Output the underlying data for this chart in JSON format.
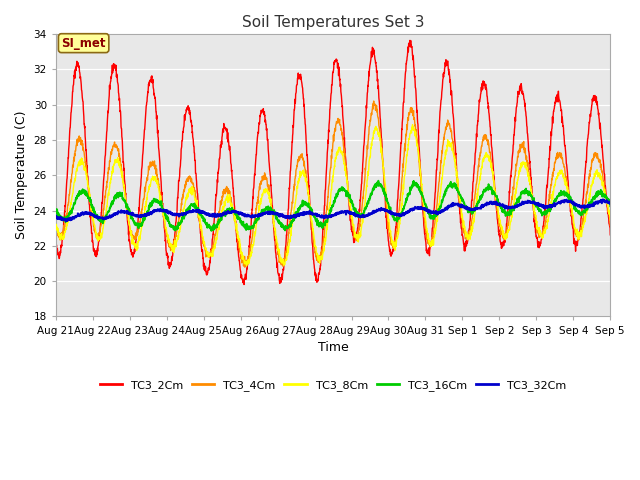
{
  "title": "Soil Temperatures Set 3",
  "xlabel": "Time",
  "ylabel": "Soil Temperature (C)",
  "ylim": [
    18,
    34
  ],
  "yticks": [
    18,
    20,
    22,
    24,
    26,
    28,
    30,
    32,
    34
  ],
  "bg_color": "#e8e8e8",
  "annotation_text": "SI_met",
  "annotation_color": "#8b0000",
  "annotation_bg": "#ffff99",
  "annotation_border": "#8b6914",
  "lines": {
    "TC3_2Cm": {
      "color": "#ff0000",
      "lw": 1.0
    },
    "TC3_4Cm": {
      "color": "#ff8c00",
      "lw": 1.0
    },
    "TC3_8Cm": {
      "color": "#ffff00",
      "lw": 1.0
    },
    "TC3_16Cm": {
      "color": "#00cc00",
      "lw": 1.3
    },
    "TC3_32Cm": {
      "color": "#0000cc",
      "lw": 1.5
    }
  },
  "legend_colors": [
    "#ff0000",
    "#ff8c00",
    "#ffff00",
    "#00cc00",
    "#0000cc"
  ],
  "legend_labels": [
    "TC3_2Cm",
    "TC3_4Cm",
    "TC3_8Cm",
    "TC3_16Cm",
    "TC3_32Cm"
  ],
  "n_days": 15,
  "pts_per_day": 144,
  "x_tick_labels": [
    "Aug 21",
    "Aug 22",
    "Aug 23",
    "Aug 24",
    "Aug 25",
    "Aug 26",
    "Aug 27",
    "Aug 28",
    "Aug 29",
    "Aug 30",
    "Aug 31",
    "Sep 1",
    "Sep 2",
    "Sep 3",
    "Sep 4",
    "Sep 5"
  ]
}
